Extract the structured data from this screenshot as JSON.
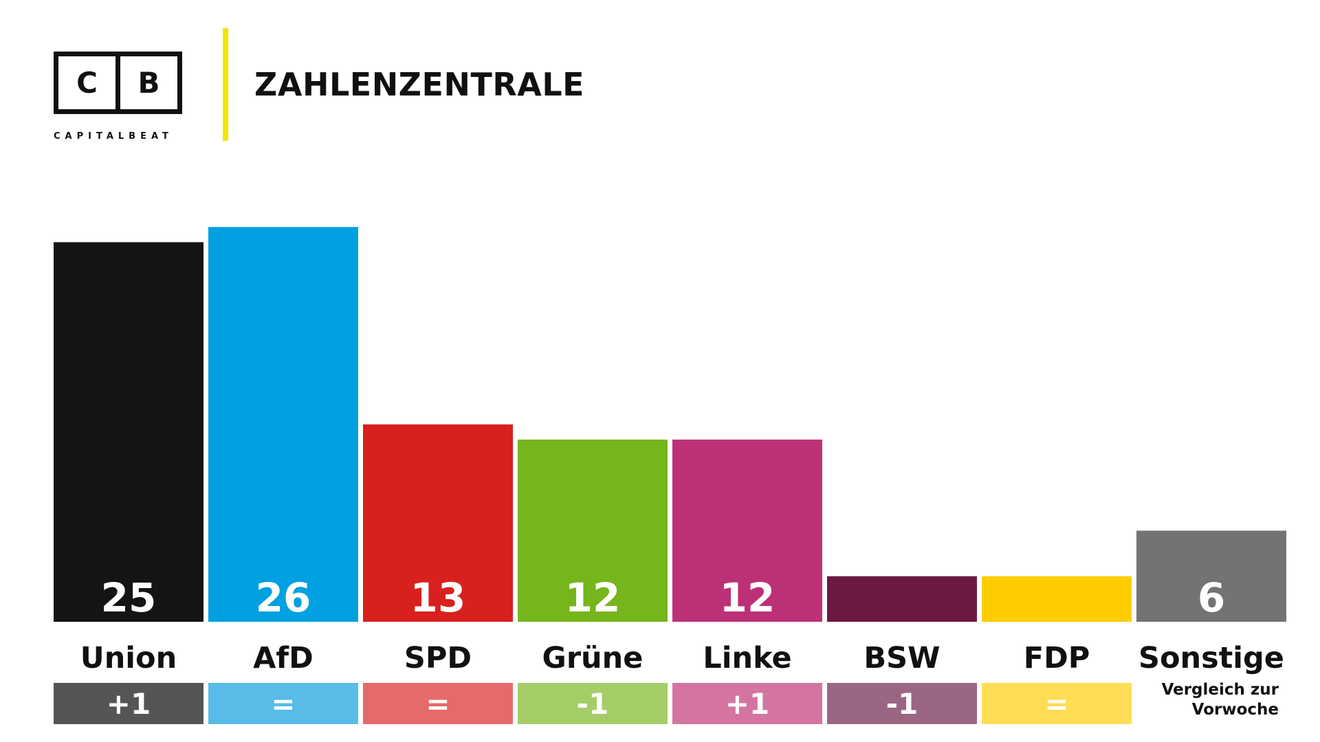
{
  "header": {
    "logo_letters": [
      "C",
      "B"
    ],
    "logo_name": "CAPITALBEAT",
    "title": "ZAHLENZENTRALE"
  },
  "colors": {
    "accent_divider": "#f2e500",
    "value_text": "#ffffff",
    "label_text": "#111111"
  },
  "chart_data": {
    "type": "bar",
    "title": "",
    "xlabel": "",
    "ylabel": "",
    "ylim": [
      0,
      26
    ],
    "categories": [
      "Union",
      "AfD",
      "SPD",
      "Grüne",
      "Linke",
      "BSW",
      "FDP",
      "Sonstige"
    ],
    "values": [
      25,
      26,
      13,
      12,
      12,
      3,
      3,
      6
    ],
    "value_labels": [
      "25",
      "26",
      "13",
      "12",
      "12",
      "",
      "",
      "6"
    ],
    "changes": [
      "+1",
      "=",
      "=",
      "-1",
      "+1",
      "-1",
      "=",
      ""
    ],
    "bar_colors": [
      "#141414",
      "#00a0e1",
      "#d8201f",
      "#76b51c",
      "#bc3175",
      "#6b1940",
      "#ffcc00",
      "#737373"
    ],
    "change_colors": [
      "#555555",
      "#58bce8",
      "#e66a6a",
      "#a4cd68",
      "#d475a1",
      "#9b6683",
      "#ffdd55",
      ""
    ],
    "comparison_note": "Vergleich zur Vorwoche",
    "grid": false,
    "legend": "none"
  }
}
